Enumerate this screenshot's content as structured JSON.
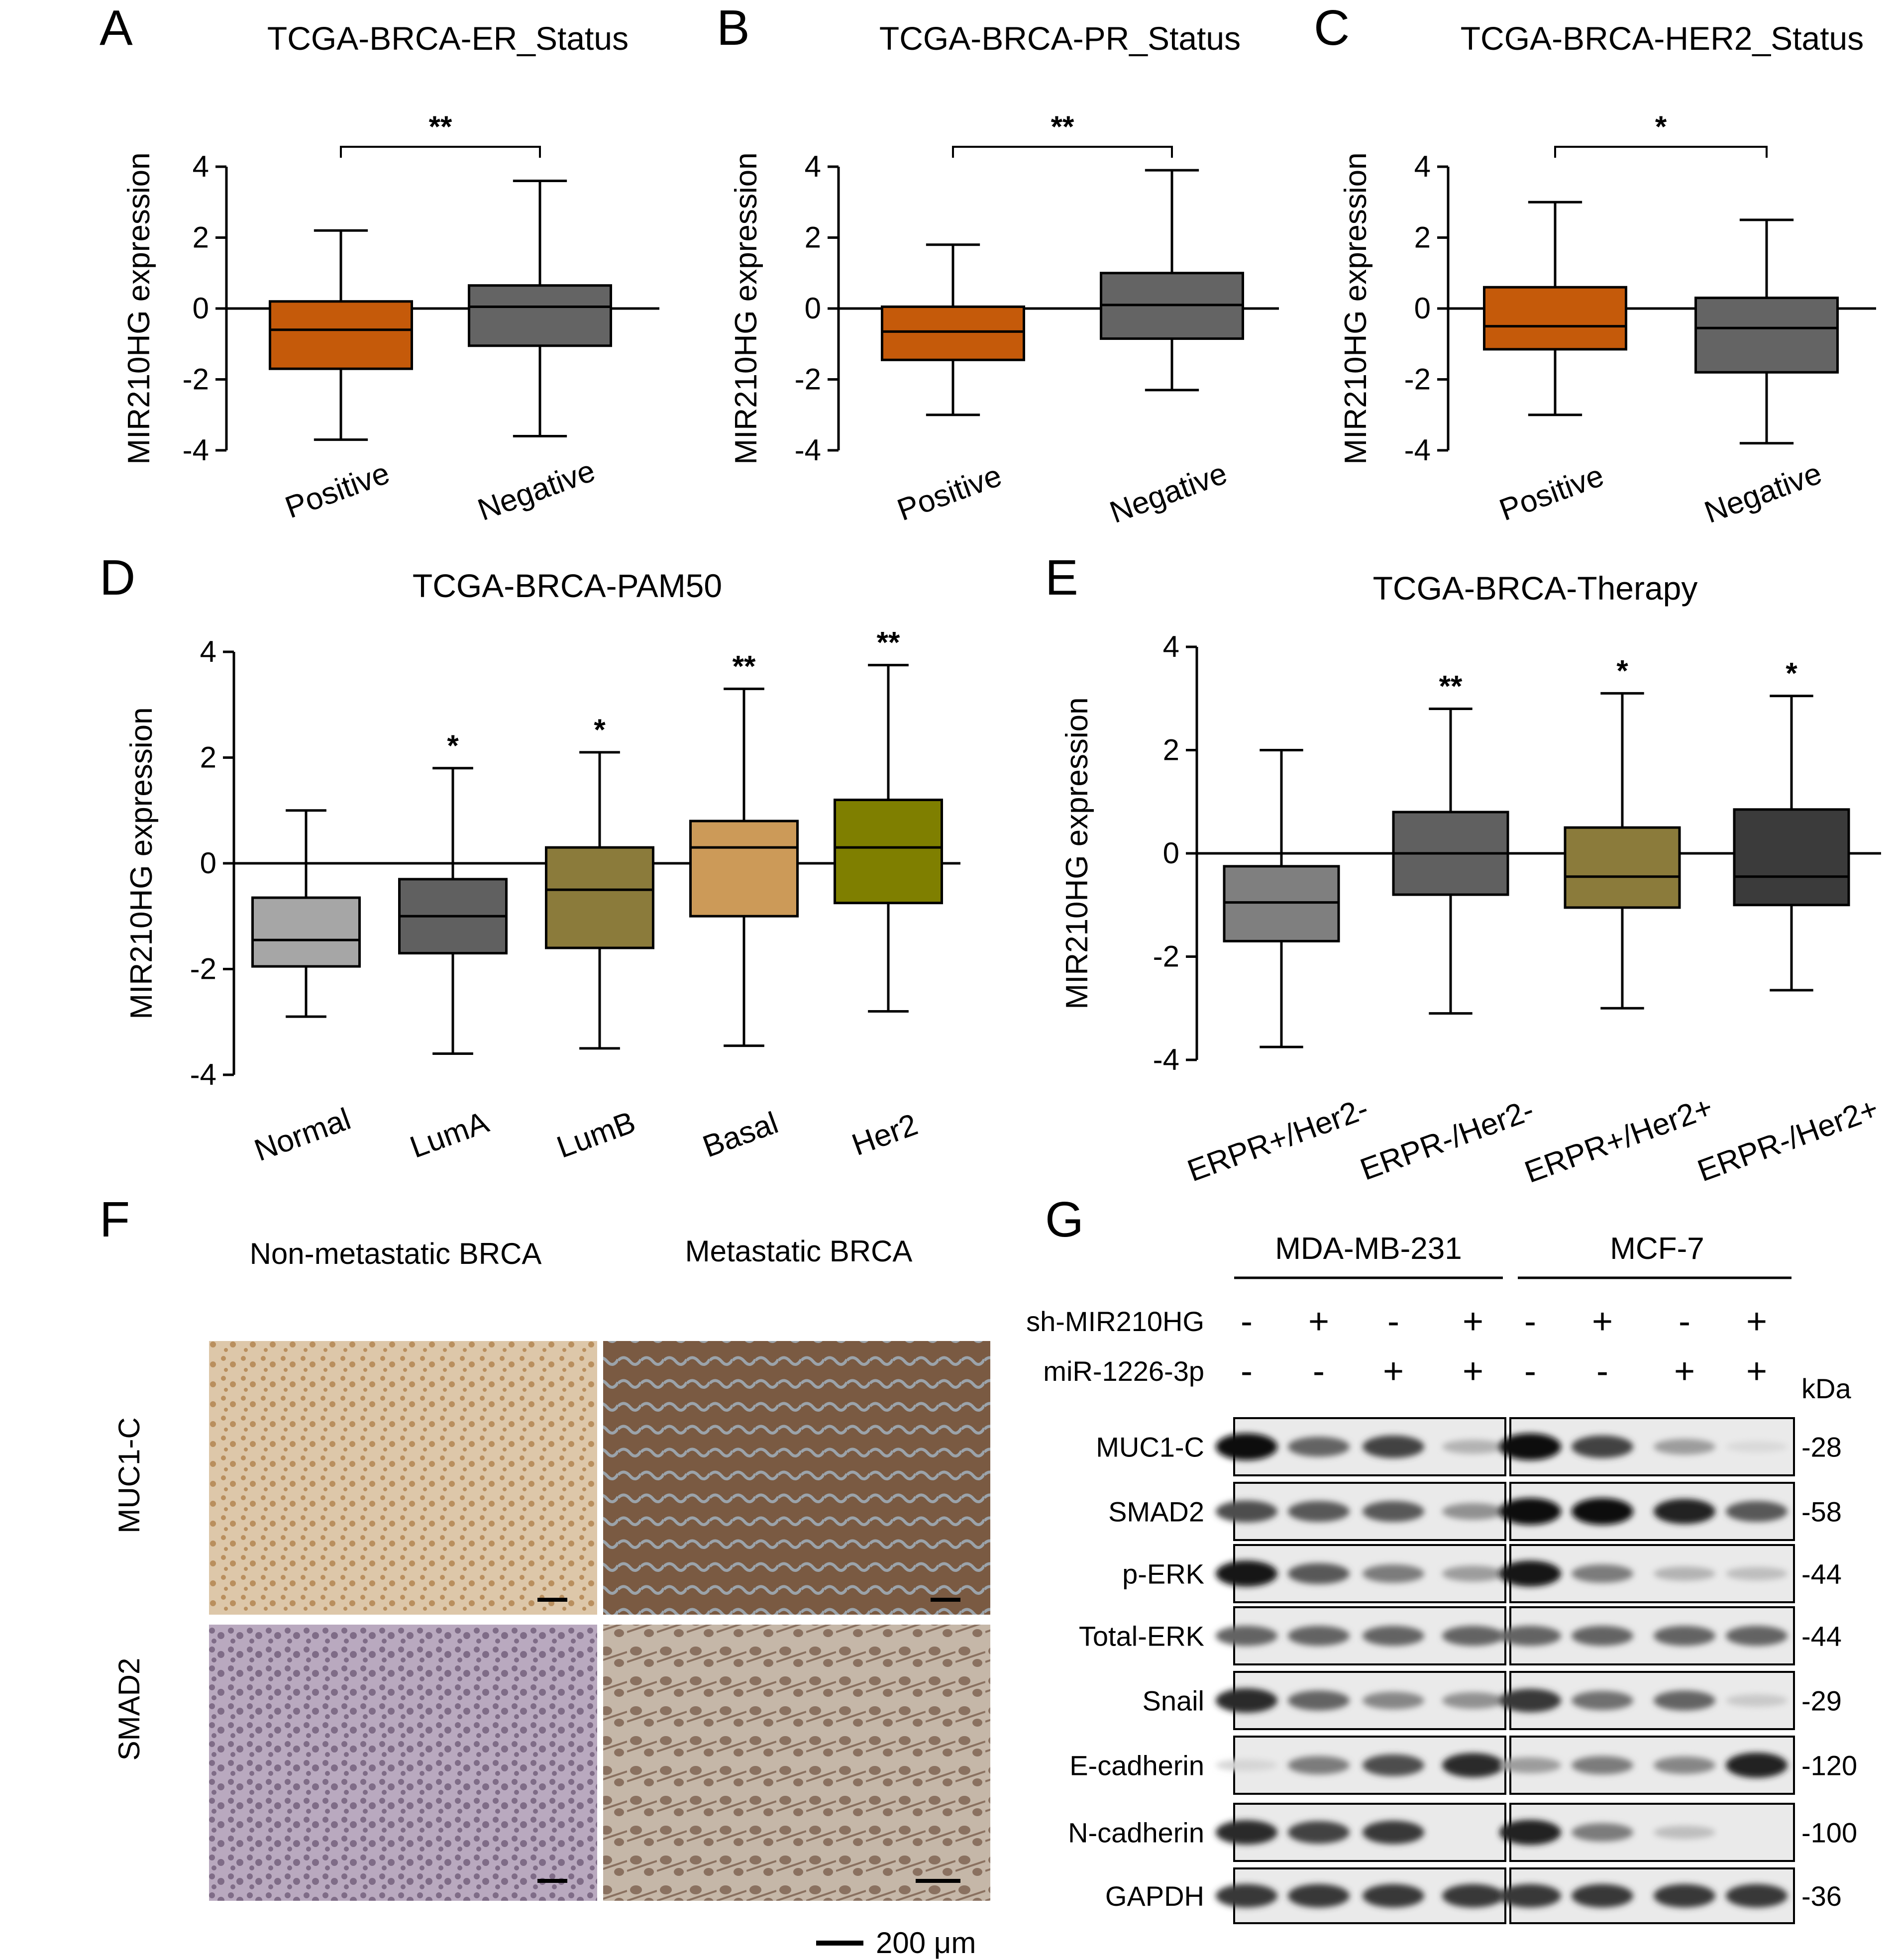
{
  "chart_data": [
    {
      "panel": "A",
      "type": "box",
      "title": "TCGA-BRCA-ER_Status",
      "ylabel": "MIR210HG expression",
      "ylim": [
        -4,
        4
      ],
      "yticks": [
        "4",
        "2",
        "0",
        "-2",
        "-4"
      ],
      "categories": [
        "Positive",
        "Negative"
      ],
      "colors": [
        "#c55a0a",
        "#646464"
      ],
      "boxes": [
        {
          "min": -3.7,
          "q1": -1.7,
          "median": -0.6,
          "q3": 0.2,
          "max": 2.2
        },
        {
          "min": -3.6,
          "q1": -1.05,
          "median": 0.05,
          "q3": 0.65,
          "max": 3.6
        }
      ],
      "comparisons": [
        {
          "from": 0,
          "to": 1,
          "label": "**"
        }
      ]
    },
    {
      "panel": "B",
      "type": "box",
      "title": "TCGA-BRCA-PR_Status",
      "ylabel": "MIR210HG expression",
      "ylim": [
        -4,
        4
      ],
      "yticks": [
        "4",
        "2",
        "0",
        "-2",
        "-4"
      ],
      "categories": [
        "Positive",
        "Negative"
      ],
      "colors": [
        "#c55a0a",
        "#646464"
      ],
      "boxes": [
        {
          "min": -3.0,
          "q1": -1.45,
          "median": -0.65,
          "q3": 0.05,
          "max": 1.8
        },
        {
          "min": -2.3,
          "q1": -0.85,
          "median": 0.1,
          "q3": 1.0,
          "max": 3.9
        }
      ],
      "comparisons": [
        {
          "from": 0,
          "to": 1,
          "label": "**"
        }
      ]
    },
    {
      "panel": "C",
      "type": "box",
      "title": "TCGA-BRCA-HER2_Status",
      "ylabel": "MIR210HG expression",
      "ylim": [
        -4,
        4
      ],
      "yticks": [
        "4",
        "2",
        "0",
        "-2",
        "-4"
      ],
      "categories": [
        "Positive",
        "Negative"
      ],
      "colors": [
        "#c55a0a",
        "#646464"
      ],
      "boxes": [
        {
          "min": -3.0,
          "q1": -1.15,
          "median": -0.5,
          "q3": 0.6,
          "max": 3.0
        },
        {
          "min": -3.8,
          "q1": -1.8,
          "median": -0.55,
          "q3": 0.3,
          "max": 2.5
        }
      ],
      "comparisons": [
        {
          "from": 0,
          "to": 1,
          "label": "*"
        }
      ]
    },
    {
      "panel": "D",
      "type": "box",
      "title": "TCGA-BRCA-PAM50",
      "ylabel": "MIR210HG expression",
      "ylim": [
        -4,
        4
      ],
      "yticks": [
        "4",
        "2",
        "0",
        "-2",
        "-4"
      ],
      "categories": [
        "Normal",
        "LumA",
        "LumB",
        "Basal",
        "Her2"
      ],
      "colors": [
        "#a6a6a6",
        "#606060",
        "#8b7b3b",
        "#cc9a58",
        "#7f7f00"
      ],
      "boxes": [
        {
          "min": -2.9,
          "q1": -1.95,
          "median": -1.45,
          "q3": -0.65,
          "max": 1.0
        },
        {
          "min": -3.6,
          "q1": -1.7,
          "median": -1.0,
          "q3": -0.3,
          "max": 1.8
        },
        {
          "min": -3.5,
          "q1": -1.6,
          "median": -0.5,
          "q3": 0.3,
          "max": 2.1
        },
        {
          "min": -3.45,
          "q1": -1.0,
          "median": 0.3,
          "q3": 0.8,
          "max": 3.3
        },
        {
          "min": -2.8,
          "q1": -0.75,
          "median": 0.3,
          "q3": 1.2,
          "max": 3.75
        }
      ],
      "significance": [
        "",
        "*",
        "*",
        "**",
        "**"
      ]
    },
    {
      "panel": "E",
      "type": "box",
      "title": "TCGA-BRCA-Therapy",
      "ylabel": "MIR210HG expression",
      "ylim": [
        -4,
        4
      ],
      "yticks": [
        "4",
        "2",
        "0",
        "-2",
        "-4"
      ],
      "categories": [
        "ERPR+/Her2-",
        "ERPR-/Her2-",
        "ERPR+/Her2+",
        "ERPR-/Her2+"
      ],
      "colors": [
        "#7f7f7f",
        "#606060",
        "#8b7b3b",
        "#3b3b3b"
      ],
      "boxes": [
        {
          "min": -3.75,
          "q1": -1.7,
          "median": -0.95,
          "q3": -0.25,
          "max": 2.0
        },
        {
          "min": -3.1,
          "q1": -0.8,
          "median": 0.0,
          "q3": 0.8,
          "max": 2.8
        },
        {
          "min": -3.0,
          "q1": -1.05,
          "median": -0.45,
          "q3": 0.5,
          "max": 3.1
        },
        {
          "min": -2.65,
          "q1": -1.0,
          "median": -0.45,
          "q3": 0.85,
          "max": 3.05
        }
      ],
      "significance": [
        "",
        "**",
        "*",
        "*"
      ]
    }
  ],
  "panel_f": {
    "label": "F",
    "col_headers": [
      "Non-metastatic BRCA",
      "Metastatic BRCA"
    ],
    "row_labels": [
      "MUC1-C",
      "SMAD2"
    ],
    "tile_colors": {
      "muc1_nonmeta": [
        "#ddc7a9",
        "#b98f5e"
      ],
      "muc1_meta": [
        "#7a5a42",
        "#9ba3aa"
      ],
      "smad2_nonmeta": [
        "#b9a9bf",
        "#7f6c87"
      ],
      "smad2_meta": [
        "#c5b7a8",
        "#8a7160"
      ]
    },
    "scalebar_label": "200 μm"
  },
  "panel_g": {
    "label": "G",
    "cell_lines": [
      "MDA-MB-231",
      "MCF-7"
    ],
    "conditions": [
      {
        "name": "sh-MIR210HG",
        "values": [
          "-",
          "+",
          "-",
          "+",
          "-",
          "+",
          "-",
          "+"
        ]
      },
      {
        "name": "miR-1226-3p",
        "values": [
          "-",
          "-",
          "+",
          "+",
          "-",
          "-",
          "+",
          "+"
        ]
      }
    ],
    "kda_label": "kDa",
    "blots": [
      {
        "name": "MUC1-C",
        "kda": "-28",
        "intensity": [
          1.0,
          0.6,
          0.75,
          0.25,
          1.0,
          0.75,
          0.35,
          0.08
        ]
      },
      {
        "name": "SMAD2",
        "kda": "-58",
        "intensity": [
          0.7,
          0.65,
          0.65,
          0.4,
          1.0,
          1.0,
          0.9,
          0.65
        ]
      },
      {
        "name": "p-ERK",
        "kda": "-44",
        "intensity": [
          0.95,
          0.65,
          0.5,
          0.35,
          0.95,
          0.5,
          0.25,
          0.2
        ]
      },
      {
        "name": "Total-ERK",
        "kda": "-44",
        "intensity": [
          0.6,
          0.6,
          0.6,
          0.6,
          0.6,
          0.6,
          0.6,
          0.6
        ]
      },
      {
        "name": "Snail",
        "kda": "-29",
        "intensity": [
          0.85,
          0.6,
          0.45,
          0.4,
          0.8,
          0.55,
          0.6,
          0.15
        ]
      },
      {
        "name": "E-cadherin",
        "kda": "-120",
        "intensity": [
          0.1,
          0.5,
          0.7,
          0.85,
          0.35,
          0.5,
          0.45,
          0.9
        ]
      },
      {
        "name": "N-cadherin",
        "kda": "-100",
        "intensity": [
          0.85,
          0.75,
          0.8,
          0.0,
          0.9,
          0.5,
          0.2,
          0.0
        ]
      },
      {
        "name": "GAPDH",
        "kda": "-36",
        "intensity": [
          0.8,
          0.8,
          0.8,
          0.8,
          0.8,
          0.8,
          0.8,
          0.8
        ]
      }
    ]
  }
}
